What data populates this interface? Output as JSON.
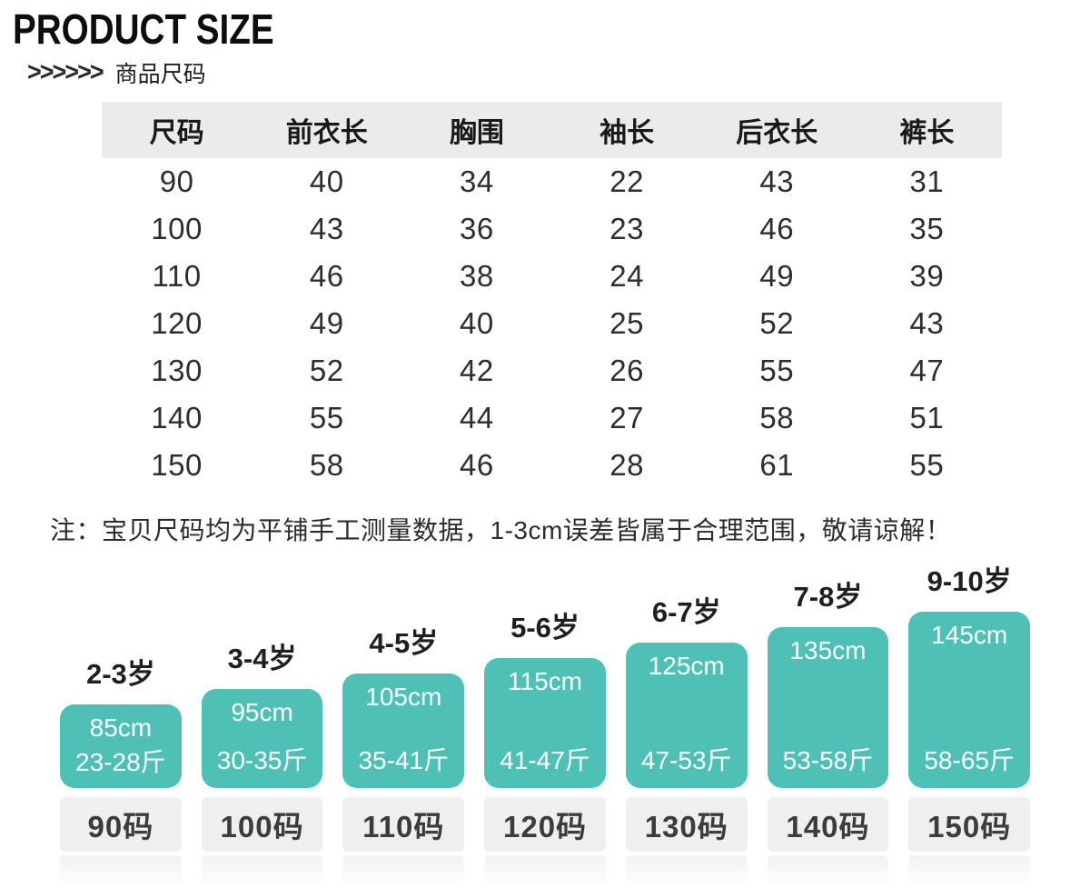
{
  "header": {
    "title": "PRODUCT SIZE",
    "arrows": ">>>>>>",
    "subtitle": "商品尺码"
  },
  "size_table": {
    "columns": [
      "尺码",
      "前衣长",
      "胸围",
      "袖长",
      "后衣长",
      "裤长"
    ],
    "rows": [
      [
        "90",
        "40",
        "34",
        "22",
        "43",
        "31"
      ],
      [
        "100",
        "43",
        "36",
        "23",
        "46",
        "35"
      ],
      [
        "110",
        "46",
        "38",
        "24",
        "49",
        "39"
      ],
      [
        "120",
        "49",
        "40",
        "25",
        "52",
        "43"
      ],
      [
        "130",
        "52",
        "42",
        "26",
        "55",
        "47"
      ],
      [
        "140",
        "55",
        "44",
        "27",
        "58",
        "51"
      ],
      [
        "150",
        "58",
        "46",
        "28",
        "61",
        "55"
      ]
    ]
  },
  "note": {
    "text": "注：宝贝尺码均为平铺手工测量数据，1-3cm误差皆属于合理范围，敬请谅解！"
  },
  "chart_data": {
    "type": "bar",
    "categories": [
      "2-3岁",
      "3-4岁",
      "4-5岁",
      "5-6岁",
      "6-7岁",
      "7-8岁",
      "9-10岁"
    ],
    "series": [
      {
        "name": "height_cm",
        "values": [
          85,
          95,
          105,
          115,
          125,
          135,
          145
        ]
      },
      {
        "name": "weight_jin_range",
        "values": [
          "23-28",
          "30-35",
          "35-41",
          "41-47",
          "47-53",
          "53-58",
          "58-65"
        ]
      },
      {
        "name": "size_code",
        "values": [
          "90码",
          "100码",
          "110码",
          "120码",
          "130码",
          "140码",
          "150码"
        ]
      }
    ],
    "bars": [
      {
        "age": "2-3岁",
        "height_cm": 85,
        "height_label": "85cm",
        "weight_label": "23-28斤",
        "size_label": "90码"
      },
      {
        "age": "3-4岁",
        "height_cm": 95,
        "height_label": "95cm",
        "weight_label": "30-35斤",
        "size_label": "100码"
      },
      {
        "age": "4-5岁",
        "height_cm": 105,
        "height_label": "105cm",
        "weight_label": "35-41斤",
        "size_label": "110码"
      },
      {
        "age": "5-6岁",
        "height_cm": 115,
        "height_label": "115cm",
        "weight_label": "41-47斤",
        "size_label": "120码"
      },
      {
        "age": "6-7岁",
        "height_cm": 125,
        "height_label": "125cm",
        "weight_label": "47-53斤",
        "size_label": "130码"
      },
      {
        "age": "7-8岁",
        "height_cm": 135,
        "height_label": "135cm",
        "weight_label": "53-58斤",
        "size_label": "140码"
      },
      {
        "age": "9-10岁",
        "height_cm": 145,
        "height_label": "145cm",
        "weight_label": "58-65斤",
        "size_label": "150码"
      }
    ],
    "bar_color": "#4FC0B5",
    "legend_position": "none",
    "grid": false
  },
  "colors": {
    "bar": "#4FC0B5",
    "bar_text": "#ffffff",
    "table_header_bg": "#ebebeb",
    "size_tag_bg": "#efefef",
    "text": "#2d2d2d"
  }
}
